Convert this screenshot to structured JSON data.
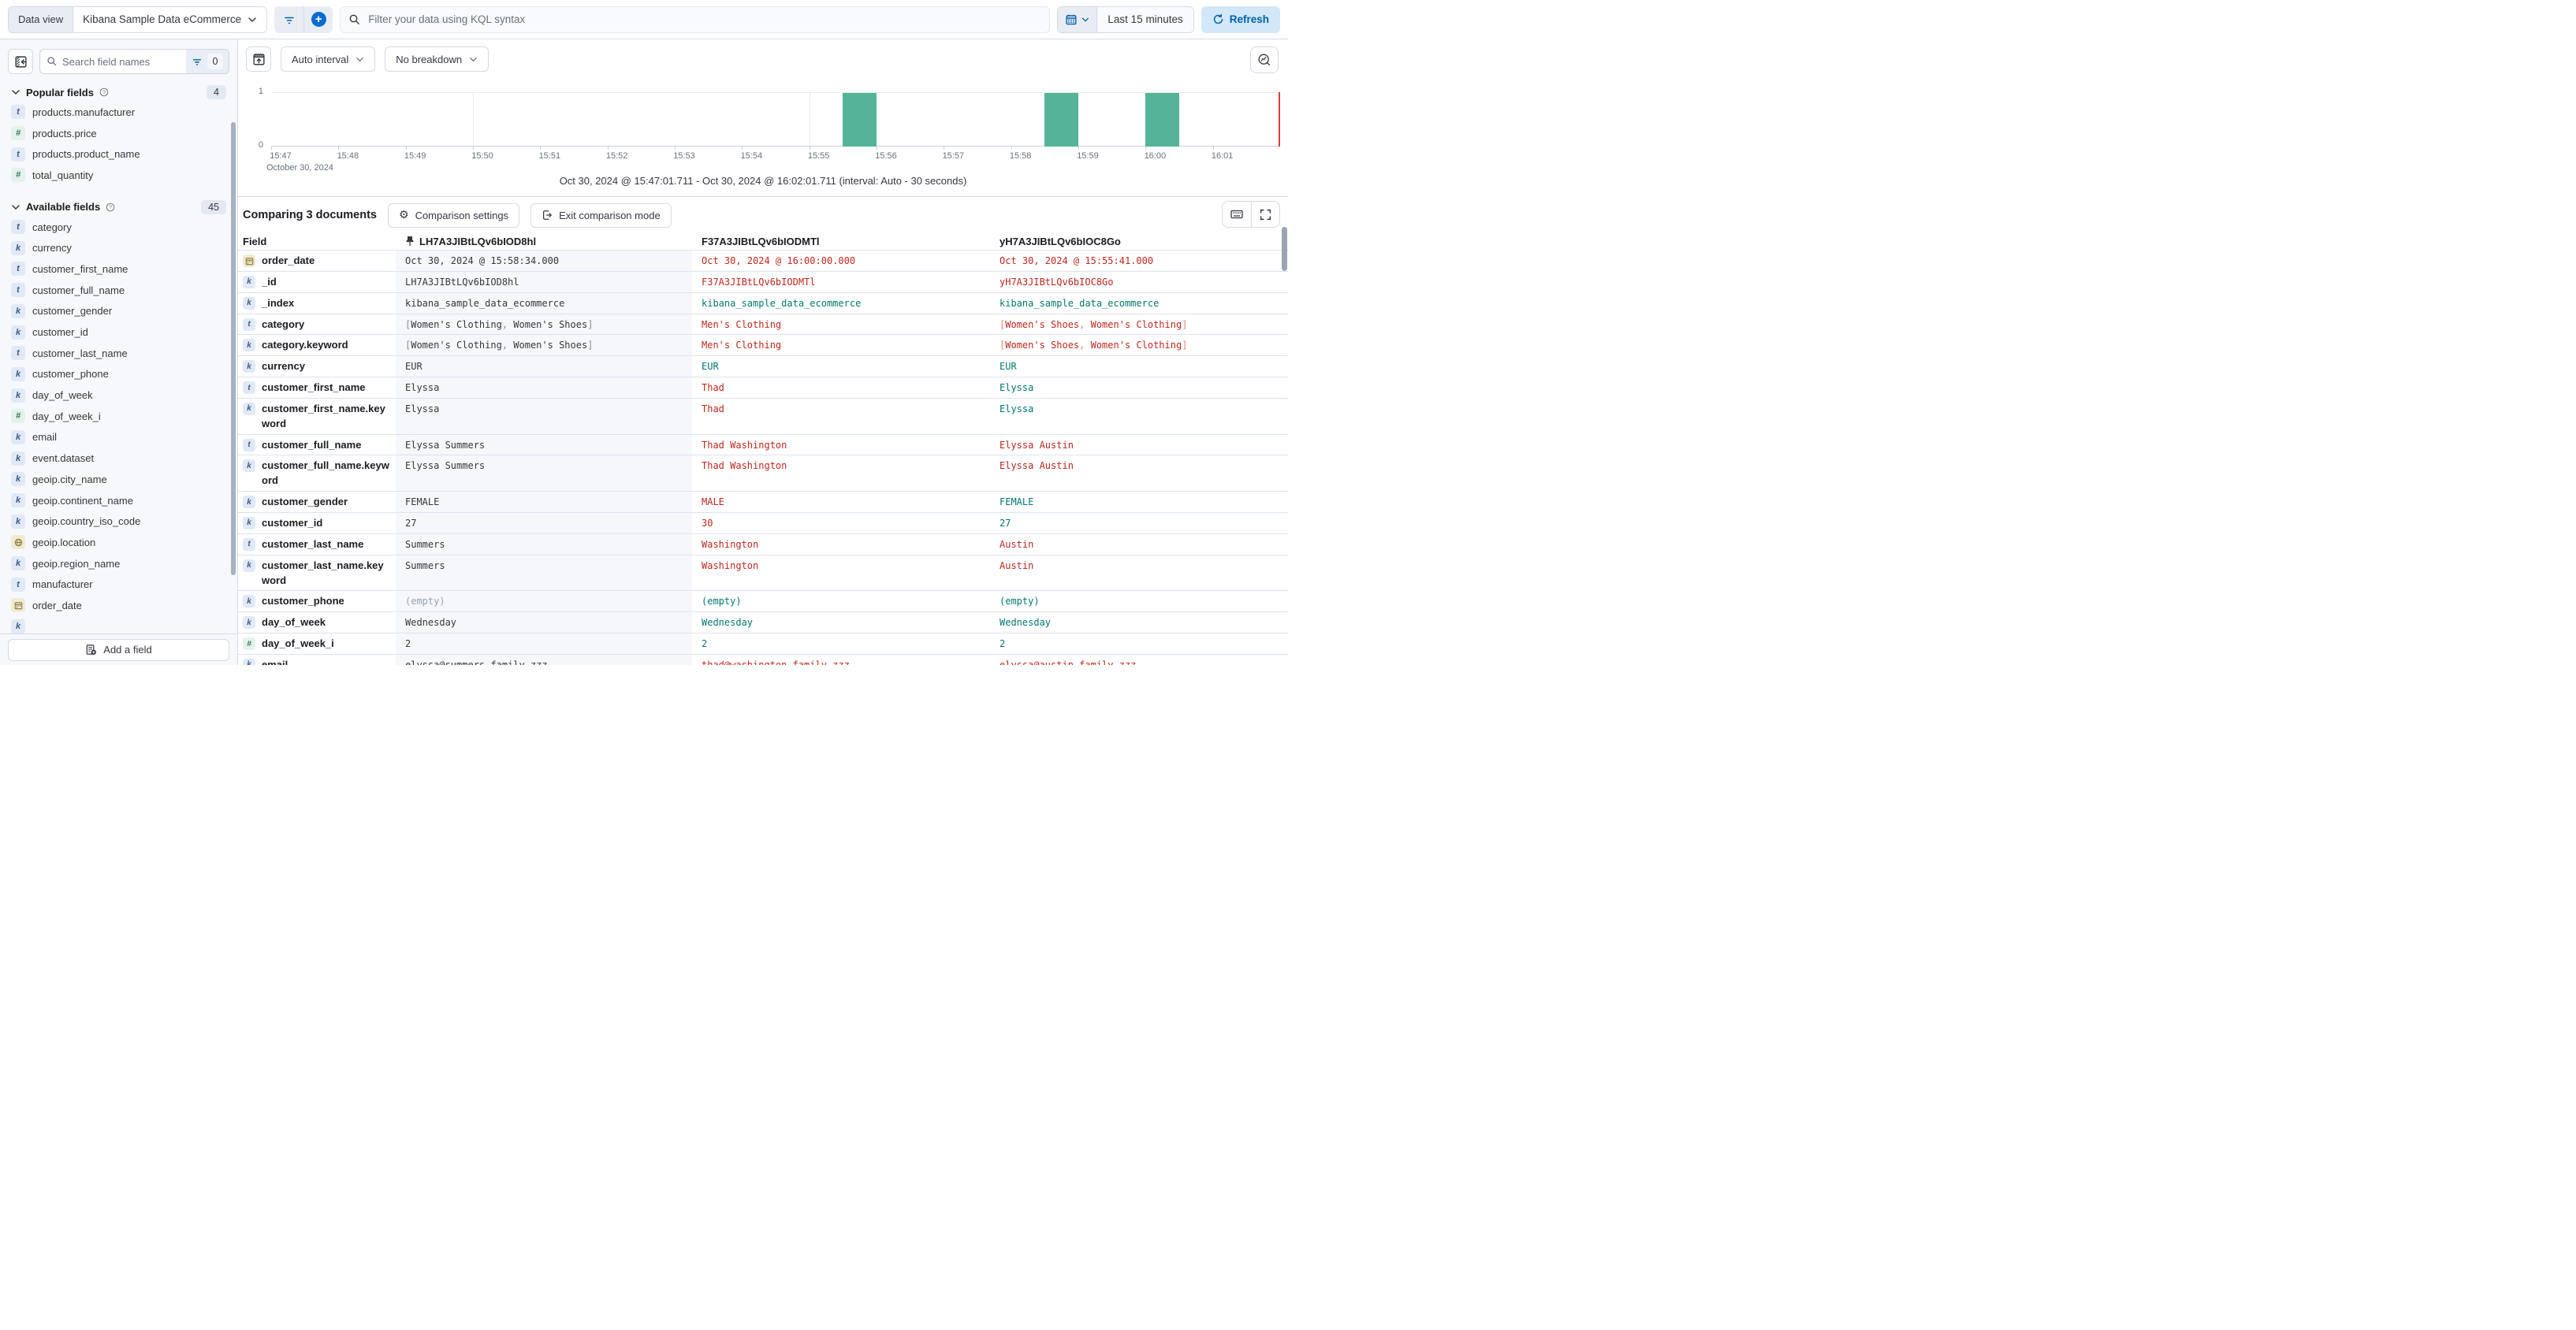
{
  "topbar": {
    "data_view_label": "Data view",
    "data_view_value": "Kibana Sample Data eCommerce",
    "kql_placeholder": "Filter your data using KQL syntax",
    "time_range": "Last 15 minutes",
    "refresh_label": "Refresh"
  },
  "sidebar": {
    "search_placeholder": "Search field names",
    "filter_count": "0",
    "sections": [
      {
        "id": "popular",
        "title": "Popular fields",
        "count": "4",
        "items": [
          {
            "type": "text",
            "name": "products.manufacturer"
          },
          {
            "type": "number",
            "name": "products.price"
          },
          {
            "type": "text",
            "name": "products.product_name"
          },
          {
            "type": "number",
            "name": "total_quantity"
          }
        ]
      },
      {
        "id": "available",
        "title": "Available fields",
        "count": "45",
        "items": [
          {
            "type": "text",
            "name": "category"
          },
          {
            "type": "keyword",
            "name": "currency"
          },
          {
            "type": "text",
            "name": "customer_first_name"
          },
          {
            "type": "text",
            "name": "customer_full_name"
          },
          {
            "type": "keyword",
            "name": "customer_gender"
          },
          {
            "type": "keyword",
            "name": "customer_id"
          },
          {
            "type": "text",
            "name": "customer_last_name"
          },
          {
            "type": "keyword",
            "name": "customer_phone"
          },
          {
            "type": "keyword",
            "name": "day_of_week"
          },
          {
            "type": "number",
            "name": "day_of_week_i"
          },
          {
            "type": "keyword",
            "name": "email"
          },
          {
            "type": "keyword",
            "name": "event.dataset"
          },
          {
            "type": "keyword",
            "name": "geoip.city_name"
          },
          {
            "type": "keyword",
            "name": "geoip.continent_name"
          },
          {
            "type": "keyword",
            "name": "geoip.country_iso_code"
          },
          {
            "type": "geo",
            "name": "geoip.location"
          },
          {
            "type": "keyword",
            "name": "geoip.region_name"
          },
          {
            "type": "text",
            "name": "manufacturer"
          },
          {
            "type": "date",
            "name": "order_date"
          }
        ]
      }
    ],
    "add_field_label": "Add a field"
  },
  "chart": {
    "interval_label": "Auto interval",
    "breakdown_label": "No breakdown",
    "date_label": "October 30, 2024",
    "subtitle": "Oct 30, 2024 @ 15:47:01.711 - Oct 30, 2024 @ 16:02:01.711 (interval: Auto - 30 seconds)"
  },
  "chart_data": {
    "type": "bar",
    "x_domain": [
      "15:47:00",
      "16:02:00"
    ],
    "x_ticks": [
      "15:47",
      "15:48",
      "15:49",
      "15:50",
      "15:51",
      "15:52",
      "15:53",
      "15:54",
      "15:55",
      "15:56",
      "15:57",
      "15:58",
      "15:59",
      "16:00",
      "16:01"
    ],
    "gridlines": [
      "15:50",
      "15:55",
      "16:00"
    ],
    "y_ticks": [
      "1",
      "0"
    ],
    "ylim": [
      0,
      1
    ],
    "bucket_seconds": 30,
    "buckets": [
      {
        "start": "15:55:30",
        "count": 1
      },
      {
        "start": "15:58:30",
        "count": 1
      },
      {
        "start": "16:00:00",
        "count": 1
      }
    ],
    "bar_color": "#54b399",
    "now_marker": "16:02:00"
  },
  "comparison": {
    "title": "Comparing 3 documents",
    "settings_label": "Comparison settings",
    "exit_label": "Exit comparison mode"
  },
  "table": {
    "field_header": "Field",
    "doc_ids": [
      "LH7A3JIBtLQv6bIOD8hl",
      "F37A3JIBtLQv6bIODMTl",
      "yH7A3JIBtLQv6bIOC8Go"
    ],
    "pinned_doc_index": 0,
    "rows": [
      {
        "field": "order_date",
        "type": "date",
        "cells": [
          {
            "text": "Oct 30, 2024 @ 15:58:34.000",
            "tone": "base"
          },
          {
            "text": "Oct 30, 2024 @ 16:00:00.000",
            "tone": "diff"
          },
          {
            "text": "Oct 30, 2024 @ 15:55:41.000",
            "tone": "diff"
          }
        ]
      },
      {
        "field": "_id",
        "type": "keyword",
        "cells": [
          {
            "text": "LH7A3JIBtLQv6bIOD8hl",
            "tone": "base"
          },
          {
            "text": "F37A3JIBtLQv6bIODMTl",
            "tone": "diff"
          },
          {
            "text": "yH7A3JIBtLQv6bIOC8Go",
            "tone": "diff"
          }
        ]
      },
      {
        "field": "_index",
        "type": "keyword",
        "cells": [
          {
            "text": "kibana_sample_data_ecommerce",
            "tone": "base"
          },
          {
            "text": "kibana_sample_data_ecommerce",
            "tone": "match"
          },
          {
            "text": "kibana_sample_data_ecommerce",
            "tone": "match"
          }
        ]
      },
      {
        "field": "category",
        "type": "text",
        "cells": [
          {
            "text": "[Women's Clothing, Women's Shoes]",
            "tone": "base"
          },
          {
            "text": "Men's Clothing",
            "tone": "diff"
          },
          {
            "text": "[Women's Shoes, Women's Clothing]",
            "tone": "diff"
          }
        ]
      },
      {
        "field": "category.keyword",
        "type": "keyword",
        "cells": [
          {
            "text": "[Women's Clothing, Women's Shoes]",
            "tone": "base"
          },
          {
            "text": "Men's Clothing",
            "tone": "diff"
          },
          {
            "text": "[Women's Shoes, Women's Clothing]",
            "tone": "diff"
          }
        ]
      },
      {
        "field": "currency",
        "type": "keyword",
        "cells": [
          {
            "text": "EUR",
            "tone": "base"
          },
          {
            "text": "EUR",
            "tone": "match"
          },
          {
            "text": "EUR",
            "tone": "match"
          }
        ]
      },
      {
        "field": "customer_first_name",
        "type": "text",
        "cells": [
          {
            "text": "Elyssa",
            "tone": "base"
          },
          {
            "text": "Thad",
            "tone": "diff"
          },
          {
            "text": "Elyssa",
            "tone": "match"
          }
        ]
      },
      {
        "field": "customer_first_name.keyword",
        "type": "keyword",
        "cells": [
          {
            "text": "Elyssa",
            "tone": "base"
          },
          {
            "text": "Thad",
            "tone": "diff"
          },
          {
            "text": "Elyssa",
            "tone": "match"
          }
        ]
      },
      {
        "field": "customer_full_name",
        "type": "text",
        "cells": [
          {
            "text": "Elyssa Summers",
            "tone": "base"
          },
          {
            "text": "Thad Washington",
            "tone": "diff"
          },
          {
            "text": "Elyssa Austin",
            "tone": "diff"
          }
        ]
      },
      {
        "field": "customer_full_name.keyword",
        "type": "keyword",
        "cells": [
          {
            "text": "Elyssa Summers",
            "tone": "base"
          },
          {
            "text": "Thad Washington",
            "tone": "diff"
          },
          {
            "text": "Elyssa Austin",
            "tone": "diff"
          }
        ]
      },
      {
        "field": "customer_gender",
        "type": "keyword",
        "cells": [
          {
            "text": "FEMALE",
            "tone": "base"
          },
          {
            "text": "MALE",
            "tone": "diff"
          },
          {
            "text": "FEMALE",
            "tone": "match"
          }
        ]
      },
      {
        "field": "customer_id",
        "type": "keyword",
        "cells": [
          {
            "text": "27",
            "tone": "base"
          },
          {
            "text": "30",
            "tone": "diff"
          },
          {
            "text": "27",
            "tone": "match"
          }
        ]
      },
      {
        "field": "customer_last_name",
        "type": "text",
        "cells": [
          {
            "text": "Summers",
            "tone": "base"
          },
          {
            "text": "Washington",
            "tone": "diff"
          },
          {
            "text": "Austin",
            "tone": "diff"
          }
        ]
      },
      {
        "field": "customer_last_name.keyword",
        "type": "keyword",
        "cells": [
          {
            "text": "Summers",
            "tone": "base"
          },
          {
            "text": "Washington",
            "tone": "diff"
          },
          {
            "text": "Austin",
            "tone": "diff"
          }
        ]
      },
      {
        "field": "customer_phone",
        "type": "keyword",
        "cells": [
          {
            "text": "(empty)",
            "tone": "empty"
          },
          {
            "text": "(empty)",
            "tone": "match"
          },
          {
            "text": "(empty)",
            "tone": "match"
          }
        ]
      },
      {
        "field": "day_of_week",
        "type": "keyword",
        "cells": [
          {
            "text": "Wednesday",
            "tone": "base"
          },
          {
            "text": "Wednesday",
            "tone": "match"
          },
          {
            "text": "Wednesday",
            "tone": "match"
          }
        ]
      },
      {
        "field": "day_of_week_i",
        "type": "number",
        "cells": [
          {
            "text": "2",
            "tone": "base"
          },
          {
            "text": "2",
            "tone": "match"
          },
          {
            "text": "2",
            "tone": "match"
          }
        ]
      },
      {
        "field": "email",
        "type": "keyword",
        "cells": [
          {
            "text": "elyssa@summers-family.zzz",
            "tone": "base"
          },
          {
            "text": "thad@washington-family.zzz",
            "tone": "diff"
          },
          {
            "text": "elyssa@austin-family.zzz",
            "tone": "diff"
          }
        ]
      }
    ]
  },
  "colors": {
    "accent_blue": "#0061a6",
    "bar_teal": "#54b399",
    "diff_red": "#bd271e",
    "match_teal": "#007871",
    "muted_gray": "#98a2b3",
    "border": "#d3dae6",
    "pinned_bg": "#f5f7fa"
  }
}
